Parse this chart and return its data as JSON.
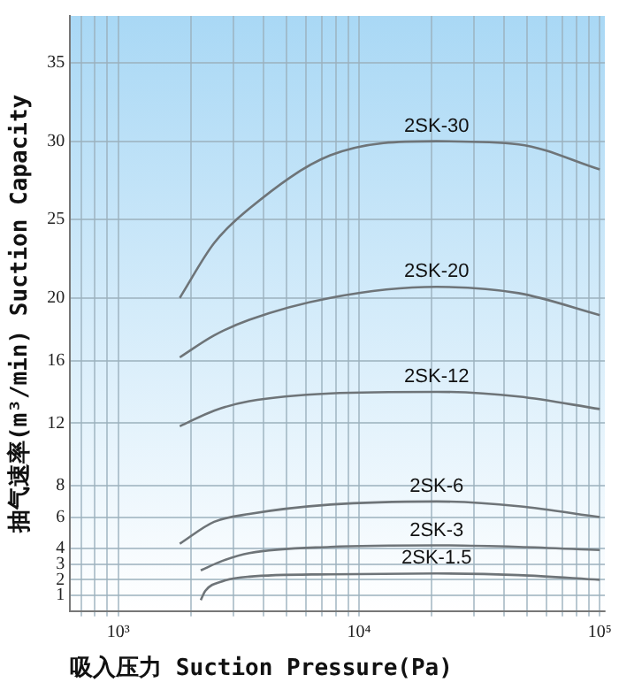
{
  "chart_data": {
    "type": "line",
    "xlabel": "吸入压力 Suction Pressure(Pa)",
    "ylabel": "抽气速率(m³/min) Suction Capacity",
    "log": "x",
    "xlim": [
      630,
      105000
    ],
    "ylim": [
      0,
      38
    ],
    "xticks": [
      {
        "value": 700,
        "label": null
      },
      {
        "value": 800,
        "label": null
      },
      {
        "value": 900,
        "label": null
      },
      {
        "value": 1000,
        "label": "10³"
      },
      {
        "value": 2000,
        "label": null
      },
      {
        "value": 3000,
        "label": null
      },
      {
        "value": 4000,
        "label": null
      },
      {
        "value": 5000,
        "label": null
      },
      {
        "value": 6000,
        "label": null
      },
      {
        "value": 7000,
        "label": null
      },
      {
        "value": 8000,
        "label": null
      },
      {
        "value": 9000,
        "label": null
      },
      {
        "value": 10000,
        "label": "10⁴"
      },
      {
        "value": 20000,
        "label": null
      },
      {
        "value": 30000,
        "label": null
      },
      {
        "value": 40000,
        "label": null
      },
      {
        "value": 50000,
        "label": null
      },
      {
        "value": 60000,
        "label": null
      },
      {
        "value": 70000,
        "label": null
      },
      {
        "value": 80000,
        "label": null
      },
      {
        "value": 90000,
        "label": null
      },
      {
        "value": 100000,
        "label": "10⁵"
      }
    ],
    "yticks": [
      1,
      2,
      3,
      4,
      6,
      8,
      12,
      16,
      20,
      25,
      30,
      35
    ],
    "grid": true,
    "legend": false,
    "marker": "none",
    "line_style": "solid",
    "series": [
      {
        "name": "2SK-30",
        "color": "#6e7478",
        "x": [
          1800,
          2500,
          3500,
          7600,
          21000,
          46000,
          100000
        ],
        "values": [
          20,
          23.5,
          25.7,
          29.1,
          30,
          29.8,
          28.2
        ]
      },
      {
        "name": "2SK-20",
        "color": "#6e7478",
        "x": [
          1800,
          2500,
          3500,
          7600,
          21000,
          46000,
          100000
        ],
        "values": [
          16.2,
          17.6,
          18.6,
          20,
          20.7,
          20.3,
          18.9
        ]
      },
      {
        "name": "2SK-12",
        "color": "#6e7478",
        "x": [
          1800,
          2500,
          3500,
          7600,
          21000,
          46000,
          100000
        ],
        "values": [
          11.8,
          12.8,
          13.4,
          13.9,
          14,
          13.7,
          12.9
        ]
      },
      {
        "name": "2SK-6",
        "color": "#6e7478",
        "x": [
          1800,
          2500,
          3500,
          7600,
          21000,
          46000,
          100000
        ],
        "values": [
          4.3,
          5.7,
          6.2,
          6.8,
          7,
          6.7,
          6
        ]
      },
      {
        "name": "2SK-3",
        "color": "#6e7478",
        "x": [
          2200,
          2700,
          3500,
          7600,
          21000,
          46000,
          100000
        ],
        "values": [
          2.6,
          3.2,
          3.7,
          4.1,
          4.2,
          4.1,
          3.9
        ]
      },
      {
        "name": "2SK-1.5",
        "color": "#6e7478",
        "x": [
          2200,
          2300,
          2700,
          3500,
          7600,
          21000,
          46000,
          100000
        ],
        "values": [
          0.7,
          1.3,
          1.9,
          2.2,
          2.35,
          2.4,
          2.3,
          2
        ]
      }
    ]
  }
}
